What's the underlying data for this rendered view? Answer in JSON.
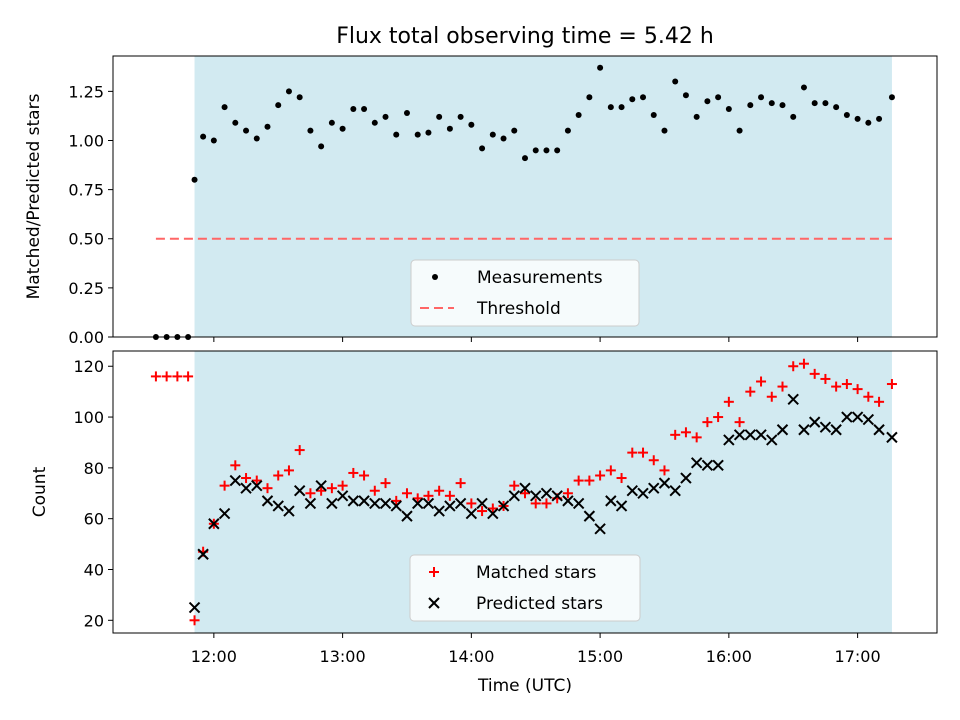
{
  "title": "Flux total observing time = 5.42 h",
  "colors": {
    "shade": "#add8e6",
    "measurement": "#000000",
    "threshold": "#ff6666",
    "matched": "#ff0000",
    "predicted": "#000000"
  },
  "chart_data": [
    {
      "type": "scatter",
      "ylabel": "Matched/Predicted stars",
      "ylim": [
        0,
        1.43
      ],
      "yticks": [
        "0.00",
        "0.25",
        "0.50",
        "0.75",
        "1.00",
        "1.25"
      ],
      "xlim": [
        "11:13",
        "17:37"
      ],
      "shaded_range": [
        "11:51",
        "17:16"
      ],
      "legend": [
        "Measurements",
        "Threshold"
      ],
      "legend_position": "lower-center",
      "threshold": {
        "name": "Threshold",
        "y": 0.5,
        "x_range": [
          "11:33",
          "17:16"
        ]
      },
      "series": [
        {
          "name": "Measurements",
          "points": [
            [
              "11:33",
              0.0
            ],
            [
              "11:38",
              0.0
            ],
            [
              "11:43",
              0.0
            ],
            [
              "11:48",
              0.0
            ],
            [
              "11:51",
              0.8
            ],
            [
              "11:55",
              1.02
            ],
            [
              "12:00",
              1.0
            ],
            [
              "12:05",
              1.17
            ],
            [
              "12:10",
              1.09
            ],
            [
              "12:15",
              1.05
            ],
            [
              "12:20",
              1.01
            ],
            [
              "12:25",
              1.07
            ],
            [
              "12:30",
              1.18
            ],
            [
              "12:35",
              1.25
            ],
            [
              "12:40",
              1.22
            ],
            [
              "12:45",
              1.05
            ],
            [
              "12:50",
              0.97
            ],
            [
              "12:55",
              1.09
            ],
            [
              "13:00",
              1.06
            ],
            [
              "13:05",
              1.16
            ],
            [
              "13:10",
              1.16
            ],
            [
              "13:15",
              1.09
            ],
            [
              "13:20",
              1.12
            ],
            [
              "13:25",
              1.03
            ],
            [
              "13:30",
              1.14
            ],
            [
              "13:35",
              1.03
            ],
            [
              "13:40",
              1.04
            ],
            [
              "13:45",
              1.12
            ],
            [
              "13:50",
              1.06
            ],
            [
              "13:55",
              1.12
            ],
            [
              "14:00",
              1.08
            ],
            [
              "14:05",
              0.96
            ],
            [
              "14:10",
              1.03
            ],
            [
              "14:15",
              1.01
            ],
            [
              "14:20",
              1.05
            ],
            [
              "14:25",
              0.91
            ],
            [
              "14:30",
              0.95
            ],
            [
              "14:35",
              0.95
            ],
            [
              "14:40",
              0.95
            ],
            [
              "14:45",
              1.05
            ],
            [
              "14:50",
              1.13
            ],
            [
              "14:55",
              1.22
            ],
            [
              "15:00",
              1.37
            ],
            [
              "15:05",
              1.17
            ],
            [
              "15:10",
              1.17
            ],
            [
              "15:15",
              1.21
            ],
            [
              "15:20",
              1.22
            ],
            [
              "15:25",
              1.13
            ],
            [
              "15:30",
              1.05
            ],
            [
              "15:35",
              1.3
            ],
            [
              "15:40",
              1.23
            ],
            [
              "15:45",
              1.12
            ],
            [
              "15:50",
              1.2
            ],
            [
              "15:55",
              1.22
            ],
            [
              "16:00",
              1.16
            ],
            [
              "16:05",
              1.05
            ],
            [
              "16:10",
              1.18
            ],
            [
              "16:15",
              1.22
            ],
            [
              "16:20",
              1.19
            ],
            [
              "16:25",
              1.18
            ],
            [
              "16:30",
              1.12
            ],
            [
              "16:35",
              1.27
            ],
            [
              "16:40",
              1.19
            ],
            [
              "16:45",
              1.19
            ],
            [
              "16:50",
              1.17
            ],
            [
              "16:55",
              1.13
            ],
            [
              "17:00",
              1.11
            ],
            [
              "17:05",
              1.09
            ],
            [
              "17:10",
              1.11
            ],
            [
              "17:16",
              1.22
            ]
          ]
        }
      ]
    },
    {
      "type": "scatter",
      "xlabel": "Time (UTC)",
      "ylabel": "Count",
      "ylim": [
        15,
        126
      ],
      "yticks": [
        "20",
        "40",
        "60",
        "80",
        "100",
        "120"
      ],
      "xlim": [
        "11:13",
        "17:37"
      ],
      "xticks": [
        "12:00",
        "13:00",
        "14:00",
        "15:00",
        "16:00",
        "17:00"
      ],
      "shaded_range": [
        "11:51",
        "17:16"
      ],
      "legend": [
        "Matched stars",
        "Predicted stars"
      ],
      "legend_position": "lower-center",
      "series": [
        {
          "name": "Matched stars",
          "points": [
            [
              "11:33",
              116
            ],
            [
              "11:38",
              116
            ],
            [
              "11:43",
              116
            ],
            [
              "11:48",
              116
            ],
            [
              "11:51",
              20
            ],
            [
              "11:55",
              47
            ],
            [
              "12:00",
              58
            ],
            [
              "12:05",
              73
            ],
            [
              "12:10",
              81
            ],
            [
              "12:15",
              76
            ],
            [
              "12:20",
              75
            ],
            [
              "12:25",
              72
            ],
            [
              "12:30",
              77
            ],
            [
              "12:35",
              79
            ],
            [
              "12:40",
              87
            ],
            [
              "12:45",
              70
            ],
            [
              "12:50",
              71
            ],
            [
              "12:55",
              72
            ],
            [
              "13:00",
              73
            ],
            [
              "13:05",
              78
            ],
            [
              "13:10",
              77
            ],
            [
              "13:15",
              71
            ],
            [
              "13:20",
              74
            ],
            [
              "13:25",
              67
            ],
            [
              "13:30",
              70
            ],
            [
              "13:35",
              68
            ],
            [
              "13:40",
              69
            ],
            [
              "13:45",
              71
            ],
            [
              "13:50",
              69
            ],
            [
              "13:55",
              74
            ],
            [
              "14:00",
              66
            ],
            [
              "14:05",
              63
            ],
            [
              "14:10",
              64
            ],
            [
              "14:15",
              65
            ],
            [
              "14:20",
              73
            ],
            [
              "14:25",
              70
            ],
            [
              "14:30",
              66
            ],
            [
              "14:35",
              66
            ],
            [
              "14:40",
              68
            ],
            [
              "14:45",
              70
            ],
            [
              "14:50",
              75
            ],
            [
              "14:55",
              75
            ],
            [
              "15:00",
              77
            ],
            [
              "15:05",
              79
            ],
            [
              "15:10",
              76
            ],
            [
              "15:15",
              86
            ],
            [
              "15:20",
              86
            ],
            [
              "15:25",
              83
            ],
            [
              "15:30",
              79
            ],
            [
              "15:35",
              93
            ],
            [
              "15:40",
              94
            ],
            [
              "15:45",
              92
            ],
            [
              "15:50",
              98
            ],
            [
              "15:55",
              100
            ],
            [
              "16:00",
              106
            ],
            [
              "16:05",
              98
            ],
            [
              "16:10",
              110
            ],
            [
              "16:15",
              114
            ],
            [
              "16:20",
              108
            ],
            [
              "16:25",
              112
            ],
            [
              "16:30",
              120
            ],
            [
              "16:35",
              121
            ],
            [
              "16:40",
              117
            ],
            [
              "16:45",
              115
            ],
            [
              "16:50",
              112
            ],
            [
              "16:55",
              113
            ],
            [
              "17:00",
              111
            ],
            [
              "17:05",
              108
            ],
            [
              "17:10",
              106
            ],
            [
              "17:16",
              113
            ]
          ]
        },
        {
          "name": "Predicted stars",
          "points": [
            [
              "11:51",
              25
            ],
            [
              "11:55",
              46
            ],
            [
              "12:00",
              58
            ],
            [
              "12:05",
              62
            ],
            [
              "12:10",
              75
            ],
            [
              "12:15",
              72
            ],
            [
              "12:20",
              73
            ],
            [
              "12:25",
              67
            ],
            [
              "12:30",
              65
            ],
            [
              "12:35",
              63
            ],
            [
              "12:40",
              71
            ],
            [
              "12:45",
              66
            ],
            [
              "12:50",
              73
            ],
            [
              "12:55",
              66
            ],
            [
              "13:00",
              69
            ],
            [
              "13:05",
              67
            ],
            [
              "13:10",
              67
            ],
            [
              "13:15",
              66
            ],
            [
              "13:20",
              66
            ],
            [
              "13:25",
              65
            ],
            [
              "13:30",
              61
            ],
            [
              "13:35",
              66
            ],
            [
              "13:40",
              66
            ],
            [
              "13:45",
              63
            ],
            [
              "13:50",
              65
            ],
            [
              "13:55",
              66
            ],
            [
              "14:00",
              62
            ],
            [
              "14:05",
              66
            ],
            [
              "14:10",
              62
            ],
            [
              "14:15",
              65
            ],
            [
              "14:20",
              69
            ],
            [
              "14:25",
              72
            ],
            [
              "14:30",
              69
            ],
            [
              "14:35",
              70
            ],
            [
              "14:40",
              69
            ],
            [
              "14:45",
              67
            ],
            [
              "14:50",
              66
            ],
            [
              "14:55",
              61
            ],
            [
              "15:00",
              56
            ],
            [
              "15:05",
              67
            ],
            [
              "15:10",
              65
            ],
            [
              "15:15",
              71
            ],
            [
              "15:20",
              70
            ],
            [
              "15:25",
              72
            ],
            [
              "15:30",
              74
            ],
            [
              "15:35",
              71
            ],
            [
              "15:40",
              76
            ],
            [
              "15:45",
              82
            ],
            [
              "15:50",
              81
            ],
            [
              "15:55",
              81
            ],
            [
              "16:00",
              91
            ],
            [
              "16:05",
              93
            ],
            [
              "16:10",
              93
            ],
            [
              "16:15",
              93
            ],
            [
              "16:20",
              91
            ],
            [
              "16:25",
              95
            ],
            [
              "16:30",
              107
            ],
            [
              "16:35",
              95
            ],
            [
              "16:40",
              98
            ],
            [
              "16:45",
              96
            ],
            [
              "16:50",
              95
            ],
            [
              "16:55",
              100
            ],
            [
              "17:00",
              100
            ],
            [
              "17:05",
              99
            ],
            [
              "17:10",
              95
            ],
            [
              "17:16",
              92
            ]
          ]
        }
      ]
    }
  ]
}
